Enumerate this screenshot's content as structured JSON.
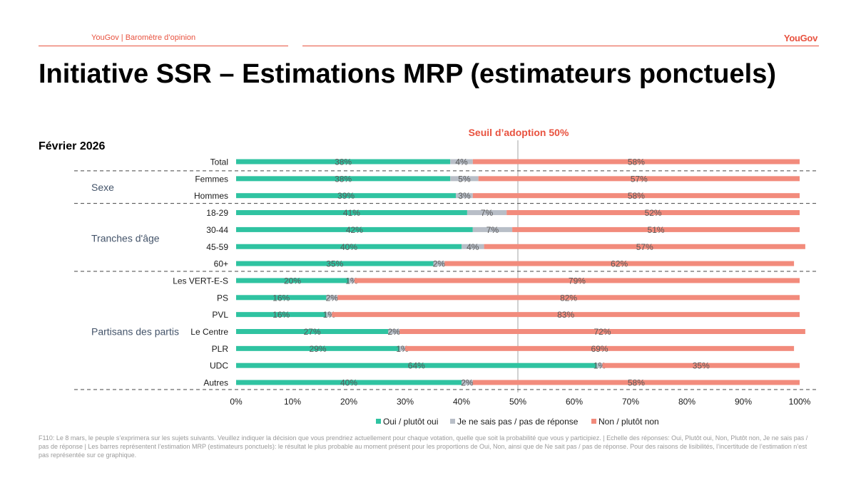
{
  "header": {
    "source_label": "YouGov | Baromètre d’opinion",
    "logo_text": "YouGov"
  },
  "title": "Initiative SSR – Estimations MRP (estimateurs ponctuels)",
  "subtitle": "Février 2026",
  "threshold_label": "Seuil d’adoption 50%",
  "footnote": "F110: Le 8 mars, le peuple s’exprimera sur les sujets suivants. Veuillez indiquer la décision que vous prendriez actuellement pour chaque votation, quelle que soit la probabilité que vous y participiez. | Echelle des réponses: Oui, Plutôt oui, Non, Plutôt non, Je ne sais pas / pas de réponse | Les barres représentent l’estimation MRP (estimateurs ponctuels): le résultat le plus probable au moment présent pour les proportions de Oui, Non, ainsi que de Ne sait pas / pas de réponse. Pour des raisons de lisibilités, l’incertitude de l’estimation n’est pas représentée sur ce graphique.",
  "colors": {
    "oui": "#2fc3a1",
    "nsp": "#b8bec7",
    "non": "#f28b7c",
    "accent": "#e8523f",
    "group_label": "#44546a"
  },
  "chart_data": {
    "type": "bar",
    "orientation": "horizontal",
    "stacked": true,
    "categories": [
      "Total",
      "Femmes",
      "Hommes",
      "18-29",
      "30-44",
      "45-59",
      "60+",
      "Les VERT-E-S",
      "PS",
      "PVL",
      "Le Centre",
      "PLR",
      "UDC",
      "Autres"
    ],
    "groups": [
      {
        "label": "Sexe",
        "categories": [
          "Femmes",
          "Hommes"
        ]
      },
      {
        "label": "Tranches d'âge",
        "categories": [
          "18-29",
          "30-44",
          "45-59",
          "60+"
        ]
      },
      {
        "label": "Partisans des partis",
        "categories": [
          "Les VERT-E-S",
          "PS",
          "PVL",
          "Le Centre",
          "PLR",
          "UDC",
          "Autres"
        ]
      }
    ],
    "series": [
      {
        "name": "Oui / plutôt oui",
        "values": [
          38,
          38,
          39,
          41,
          42,
          40,
          35,
          20,
          16,
          16,
          27,
          29,
          64,
          40
        ]
      },
      {
        "name": "Je ne sais pas / pas de réponse",
        "values": [
          4,
          5,
          3,
          7,
          7,
          4,
          2,
          1,
          2,
          1,
          2,
          1,
          1,
          2
        ]
      },
      {
        "name": "Non / plutôt non",
        "values": [
          58,
          57,
          58,
          52,
          51,
          57,
          62,
          79,
          82,
          83,
          72,
          69,
          35,
          58
        ]
      }
    ],
    "value_suffix": "%",
    "xlim": [
      0,
      100
    ],
    "xticks": [
      "0%",
      "10%",
      "20%",
      "30%",
      "40%",
      "50%",
      "60%",
      "70%",
      "80%",
      "90%",
      "100%"
    ],
    "threshold": 50,
    "legend_position": "bottom"
  }
}
